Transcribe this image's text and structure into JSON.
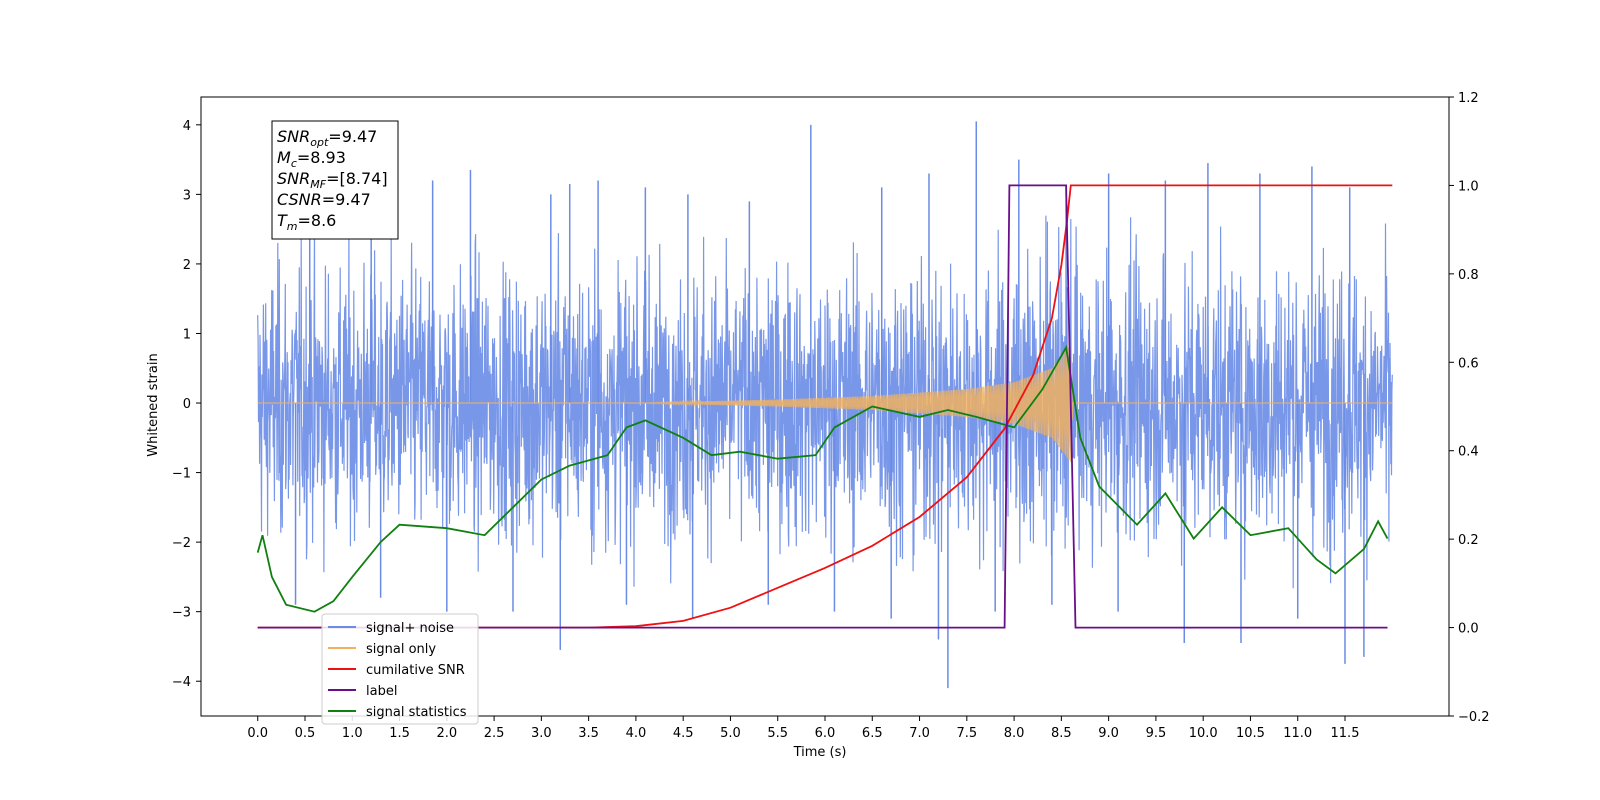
{
  "chart_data": {
    "type": "line",
    "xlabel": "Time (s)",
    "ylabel": "Whitened strain",
    "xlim": [
      -0.6,
      12.6
    ],
    "ylim": [
      -4.5,
      4.4
    ],
    "y2lim": [
      -0.2,
      1.2
    ],
    "x_ticks": [
      "0.0",
      "0.5",
      "1.0",
      "1.5",
      "2.0",
      "2.5",
      "3.0",
      "3.5",
      "4.0",
      "4.5",
      "5.0",
      "5.5",
      "6.0",
      "6.5",
      "7.0",
      "7.5",
      "8.0",
      "8.5",
      "9.0",
      "9.5",
      "10.0",
      "10.5",
      "11.0",
      "11.5"
    ],
    "y_ticks": [
      "4",
      "3",
      "2",
      "1",
      "0",
      "−1",
      "−2",
      "−3",
      "−4"
    ],
    "y2_ticks": [
      "1.2",
      "1.0",
      "0.8",
      "0.6",
      "0.4",
      "0.2",
      "0.0",
      "−0.2"
    ],
    "legend_position": "lower-left",
    "annotation": {
      "lines": [
        {
          "base": "SNR",
          "sub": "opt",
          "rest": "=9.47"
        },
        {
          "base": "M",
          "sub": "c",
          "rest": "=8.93"
        },
        {
          "base": "SNR",
          "sub": "MF",
          "rest": "=[8.74]"
        },
        {
          "base": "CSNR",
          "sub": "",
          "rest": "=9.47"
        },
        {
          "base": "T",
          "sub": "m",
          "rest": "=8.6"
        }
      ]
    },
    "series": [
      {
        "name": "signal+ noise",
        "color": "#6a8ce6",
        "axis": "left",
        "t_range": [
          0.0,
          12.0
        ],
        "envelope_typical": 1.5,
        "peaks": [
          {
            "x": 0.55,
            "y": 3.0
          },
          {
            "x": 1.2,
            "y": 3.0
          },
          {
            "x": 1.85,
            "y": 3.2
          },
          {
            "x": 2.25,
            "y": 3.35
          },
          {
            "x": 3.1,
            "y": 3.0
          },
          {
            "x": 3.3,
            "y": 3.15
          },
          {
            "x": 3.6,
            "y": 3.2
          },
          {
            "x": 4.1,
            "y": 3.1
          },
          {
            "x": 4.55,
            "y": 3.0
          },
          {
            "x": 5.2,
            "y": 2.9
          },
          {
            "x": 5.85,
            "y": 4.0
          },
          {
            "x": 6.6,
            "y": 3.1
          },
          {
            "x": 7.1,
            "y": 3.3
          },
          {
            "x": 7.6,
            "y": 4.05
          },
          {
            "x": 8.05,
            "y": 3.5
          },
          {
            "x": 8.55,
            "y": 3.1
          },
          {
            "x": 9.0,
            "y": 3.3
          },
          {
            "x": 9.6,
            "y": 3.2
          },
          {
            "x": 10.05,
            "y": 3.45
          },
          {
            "x": 10.6,
            "y": 3.3
          },
          {
            "x": 11.15,
            "y": 3.4
          },
          {
            "x": 11.55,
            "y": 3.1
          }
        ],
        "troughs": [
          {
            "x": 0.4,
            "y": -2.9
          },
          {
            "x": 1.3,
            "y": -2.8
          },
          {
            "x": 2.0,
            "y": -3.0
          },
          {
            "x": 2.7,
            "y": -3.0
          },
          {
            "x": 3.2,
            "y": -3.55
          },
          {
            "x": 3.9,
            "y": -2.9
          },
          {
            "x": 4.6,
            "y": -3.1
          },
          {
            "x": 5.4,
            "y": -2.9
          },
          {
            "x": 6.1,
            "y": -3.0
          },
          {
            "x": 6.7,
            "y": -3.1
          },
          {
            "x": 7.2,
            "y": -3.4
          },
          {
            "x": 7.3,
            "y": -4.1
          },
          {
            "x": 7.8,
            "y": -3.0
          },
          {
            "x": 8.4,
            "y": -2.9
          },
          {
            "x": 9.1,
            "y": -3.0
          },
          {
            "x": 9.8,
            "y": -3.45
          },
          {
            "x": 10.4,
            "y": -3.45
          },
          {
            "x": 11.0,
            "y": -3.1
          },
          {
            "x": 11.5,
            "y": -3.75
          },
          {
            "x": 11.7,
            "y": -3.65
          }
        ]
      },
      {
        "name": "signal only",
        "color": "#f0b060",
        "axis": "left",
        "envelope_points": [
          {
            "x": 0.0,
            "y": 0.0
          },
          {
            "x": 4.0,
            "y": 0.0
          },
          {
            "x": 5.5,
            "y": 0.05
          },
          {
            "x": 6.5,
            "y": 0.1
          },
          {
            "x": 7.5,
            "y": 0.2
          },
          {
            "x": 8.0,
            "y": 0.3
          },
          {
            "x": 8.4,
            "y": 0.5
          },
          {
            "x": 8.6,
            "y": 0.85
          },
          {
            "x": 8.62,
            "y": 0.0
          },
          {
            "x": 12.0,
            "y": 0.0
          }
        ]
      },
      {
        "name": "cumilative SNR",
        "color": "#ee1111",
        "axis": "right",
        "points": [
          {
            "x": 0.0,
            "y": 0.0
          },
          {
            "x": 3.5,
            "y": 0.0
          },
          {
            "x": 4.0,
            "y": 0.003
          },
          {
            "x": 4.5,
            "y": 0.015
          },
          {
            "x": 5.0,
            "y": 0.045
          },
          {
            "x": 5.5,
            "y": 0.09
          },
          {
            "x": 6.0,
            "y": 0.135
          },
          {
            "x": 6.5,
            "y": 0.185
          },
          {
            "x": 7.0,
            "y": 0.25
          },
          {
            "x": 7.5,
            "y": 0.34
          },
          {
            "x": 7.9,
            "y": 0.45
          },
          {
            "x": 8.2,
            "y": 0.57
          },
          {
            "x": 8.4,
            "y": 0.7
          },
          {
            "x": 8.5,
            "y": 0.82
          },
          {
            "x": 8.56,
            "y": 0.92
          },
          {
            "x": 8.6,
            "y": 1.0
          },
          {
            "x": 12.0,
            "y": 1.0
          }
        ]
      },
      {
        "name": "label",
        "color": "#6a0f8a",
        "axis": "right",
        "points": [
          {
            "x": 0.0,
            "y": 0.0
          },
          {
            "x": 7.9,
            "y": 0.0
          },
          {
            "x": 7.95,
            "y": 1.0
          },
          {
            "x": 8.55,
            "y": 1.0
          },
          {
            "x": 8.65,
            "y": 0.0
          },
          {
            "x": 11.95,
            "y": 0.0
          }
        ]
      },
      {
        "name": "signal statistics",
        "color": "#108010",
        "axis": "left",
        "points": [
          {
            "x": 0.0,
            "y": -2.15
          },
          {
            "x": 0.05,
            "y": -1.9
          },
          {
            "x": 0.15,
            "y": -2.5
          },
          {
            "x": 0.3,
            "y": -2.9
          },
          {
            "x": 0.6,
            "y": -3.0
          },
          {
            "x": 0.8,
            "y": -2.85
          },
          {
            "x": 1.0,
            "y": -2.5
          },
          {
            "x": 1.3,
            "y": -2.0
          },
          {
            "x": 1.5,
            "y": -1.75
          },
          {
            "x": 2.0,
            "y": -1.8
          },
          {
            "x": 2.4,
            "y": -1.9
          },
          {
            "x": 2.7,
            "y": -1.5
          },
          {
            "x": 3.0,
            "y": -1.1
          },
          {
            "x": 3.3,
            "y": -0.9
          },
          {
            "x": 3.7,
            "y": -0.75
          },
          {
            "x": 3.9,
            "y": -0.35
          },
          {
            "x": 4.1,
            "y": -0.25
          },
          {
            "x": 4.5,
            "y": -0.5
          },
          {
            "x": 4.8,
            "y": -0.75
          },
          {
            "x": 5.1,
            "y": -0.7
          },
          {
            "x": 5.5,
            "y": -0.8
          },
          {
            "x": 5.9,
            "y": -0.75
          },
          {
            "x": 6.1,
            "y": -0.35
          },
          {
            "x": 6.5,
            "y": -0.05
          },
          {
            "x": 7.0,
            "y": -0.2
          },
          {
            "x": 7.3,
            "y": -0.1
          },
          {
            "x": 7.6,
            "y": -0.2
          },
          {
            "x": 8.0,
            "y": -0.35
          },
          {
            "x": 8.3,
            "y": 0.2
          },
          {
            "x": 8.55,
            "y": 0.8
          },
          {
            "x": 8.7,
            "y": -0.5
          },
          {
            "x": 8.9,
            "y": -1.2
          },
          {
            "x": 9.3,
            "y": -1.75
          },
          {
            "x": 9.6,
            "y": -1.3
          },
          {
            "x": 9.9,
            "y": -1.95
          },
          {
            "x": 10.2,
            "y": -1.5
          },
          {
            "x": 10.5,
            "y": -1.9
          },
          {
            "x": 10.9,
            "y": -1.8
          },
          {
            "x": 11.2,
            "y": -2.25
          },
          {
            "x": 11.4,
            "y": -2.45
          },
          {
            "x": 11.7,
            "y": -2.1
          },
          {
            "x": 11.85,
            "y": -1.7
          },
          {
            "x": 11.95,
            "y": -1.95
          }
        ]
      }
    ]
  }
}
